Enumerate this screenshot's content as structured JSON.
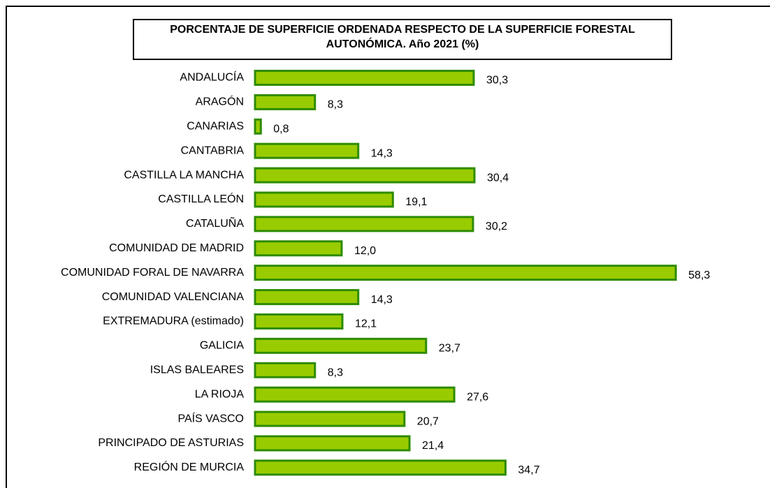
{
  "chart_data": {
    "type": "barh",
    "title": "PORCENTAJE DE SUPERFICIE ORDENADA RESPECTO DE LA SUPERFICIE FORESTAL AUTONÓMICA. Año 2021 (%)",
    "categories": [
      "ANDALUCÍA",
      "ARAGÓN",
      "CANARIAS",
      "CANTABRIA",
      "CASTILLA LA MANCHA",
      "CASTILLA LEÓN",
      "CATALUÑA",
      "COMUNIDAD DE MADRID",
      "COMUNIDAD FORAL DE NAVARRA",
      "COMUNIDAD VALENCIANA",
      "EXTREMADURA (estimado)",
      "GALICIA",
      "ISLAS BALEARES",
      "LA RIOJA",
      "PAÍS VASCO",
      "PRINCIPADO DE ASTURIAS",
      "REGIÓN DE MURCIA"
    ],
    "values": [
      30.3,
      8.3,
      0.8,
      14.3,
      30.4,
      19.1,
      30.2,
      12.0,
      58.3,
      14.3,
      12.1,
      23.7,
      8.3,
      27.6,
      20.7,
      21.4,
      34.7
    ],
    "value_labels": [
      "30,3",
      "8,3",
      "0,8",
      "14,3",
      "30,4",
      "19,1",
      "30,2",
      "12,0",
      "58,3",
      "14,3",
      "12,1",
      "23,7",
      "8,3",
      "27,6",
      "20,7",
      "21,4",
      "34,7"
    ],
    "color": "#99cc00",
    "edge_color": "#2e8b00",
    "xlim": [
      0,
      70
    ]
  }
}
